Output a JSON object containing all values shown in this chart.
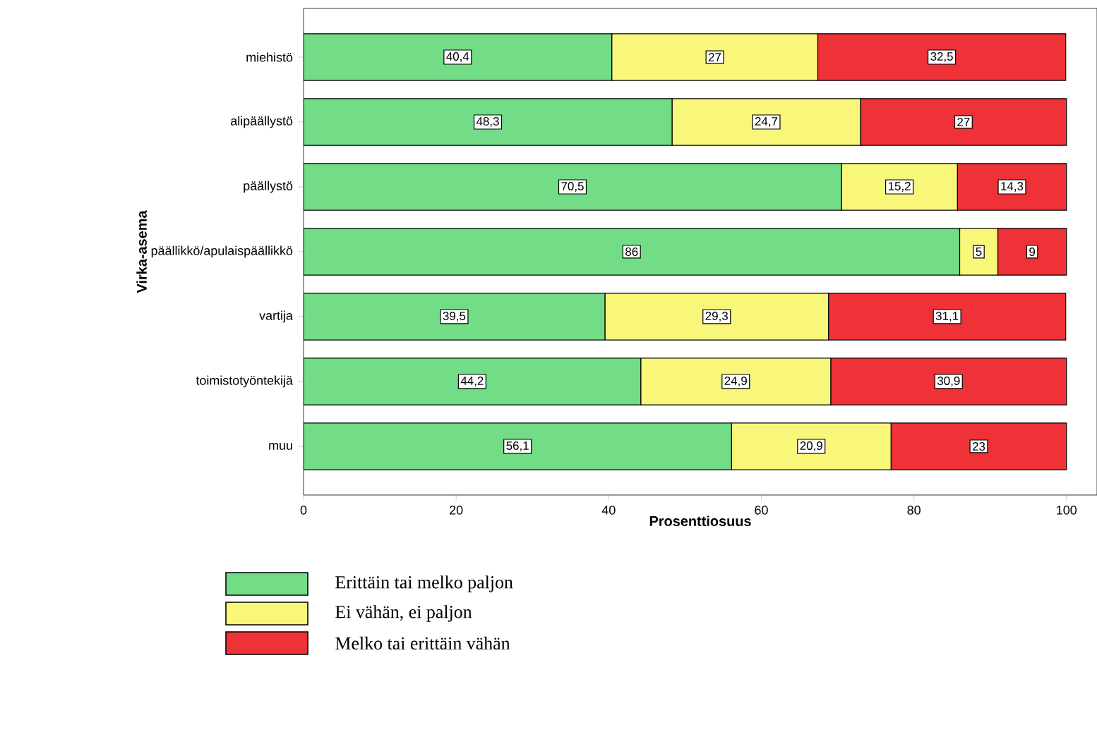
{
  "chart_data": {
    "type": "bar",
    "orientation": "horizontal",
    "stacked": true,
    "xlabel": "Prosenttiosuus",
    "ylabel": "Virka-asema",
    "categories": [
      "miehistö",
      "alipäällystö",
      "päällystö",
      "päällikkö/apulaispäällikkö",
      "vartija",
      "toimistotyöntekijä",
      "muu"
    ],
    "series": [
      {
        "name": "Erittäin tai melko paljon",
        "color": "#72dc86",
        "values": [
          40.4,
          48.3,
          70.5,
          86,
          39.5,
          44.2,
          56.1
        ],
        "value_labels": [
          "40,4",
          "48,3",
          "70,5",
          "86",
          "39,5",
          "44,2",
          "56,1"
        ]
      },
      {
        "name": "Ei vähän, ei paljon",
        "color": "#f8f77a",
        "values": [
          27,
          24.7,
          15.2,
          5,
          29.3,
          24.9,
          20.9
        ],
        "value_labels": [
          "27",
          "24,7",
          "15,2",
          "5",
          "29,3",
          "24,9",
          "20,9"
        ]
      },
      {
        "name": "Melko tai erittäin vähän",
        "color": "#ee3237",
        "values": [
          32.5,
          27,
          14.3,
          9,
          31.1,
          30.9,
          23
        ],
        "value_labels": [
          "32,5",
          "27",
          "14,3",
          "9",
          "31,1",
          "30,9",
          "23"
        ]
      }
    ],
    "xlim": [
      0,
      104
    ],
    "xticks": [
      0,
      20,
      40,
      60,
      80,
      100
    ],
    "grid": false,
    "legend": "bottom"
  }
}
